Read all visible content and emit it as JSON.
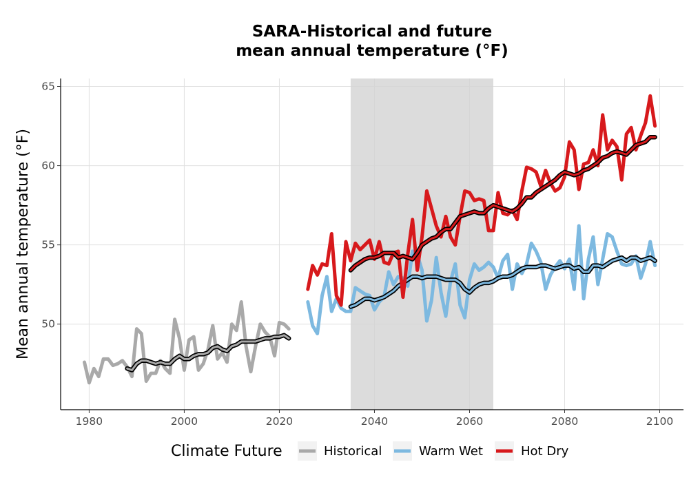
{
  "chart_data": {
    "type": "line",
    "title": "SARA-Historical and future\nmean annual temperature (°F)",
    "xlabel": "",
    "ylabel": "Mean annual temperature (°F)",
    "xlim": [
      1974,
      2105
    ],
    "ylim": [
      44.6,
      65.5
    ],
    "xticks": [
      1980,
      2000,
      2020,
      2040,
      2060,
      2080,
      2100
    ],
    "yticks": [
      50,
      55,
      60,
      65
    ],
    "grid": true,
    "shaded_period": [
      2035,
      2065
    ],
    "legend": {
      "title": "Climate Future",
      "position": "bottom",
      "entries": [
        "Historical",
        "Warm Wet",
        "Hot Dry"
      ]
    },
    "series": [
      {
        "name": "Historical",
        "color": "#A9A9A9",
        "x": [
          1979,
          1980,
          1981,
          1982,
          1983,
          1984,
          1985,
          1986,
          1987,
          1988,
          1989,
          1990,
          1991,
          1992,
          1993,
          1994,
          1995,
          1996,
          1997,
          1998,
          1999,
          2000,
          2001,
          2002,
          2003,
          2004,
          2005,
          2006,
          2007,
          2008,
          2009,
          2010,
          2011,
          2012,
          2013,
          2014,
          2015,
          2016,
          2017,
          2018,
          2019,
          2020,
          2021,
          2022
        ],
        "y": [
          47.6,
          46.3,
          47.2,
          46.7,
          47.8,
          47.8,
          47.4,
          47.5,
          47.7,
          47.3,
          46.7,
          49.7,
          49.4,
          46.4,
          46.9,
          46.9,
          47.7,
          47.2,
          46.9,
          50.3,
          49.1,
          47.1,
          49.0,
          49.2,
          47.1,
          47.5,
          48.4,
          49.9,
          47.8,
          48.2,
          47.6,
          50.0,
          49.6,
          51.4,
          48.6,
          47.0,
          48.6,
          50.0,
          49.5,
          49.2,
          48.0,
          50.1,
          50.0,
          49.7
        ]
      },
      {
        "name": "Historical trend",
        "color": "#A9A9A9",
        "x": [
          1988,
          1989,
          1990,
          1991,
          1992,
          1993,
          1994,
          1995,
          1996,
          1997,
          1998,
          1999,
          2000,
          2001,
          2002,
          2003,
          2004,
          2005,
          2006,
          2007,
          2008,
          2009,
          2010,
          2011,
          2012,
          2013,
          2014,
          2015,
          2016,
          2017,
          2018,
          2019,
          2020,
          2021,
          2022
        ],
        "y": [
          47.2,
          47.1,
          47.5,
          47.7,
          47.7,
          47.6,
          47.5,
          47.6,
          47.5,
          47.5,
          47.8,
          48.0,
          47.8,
          47.8,
          48.0,
          48.1,
          48.1,
          48.2,
          48.5,
          48.6,
          48.4,
          48.3,
          48.6,
          48.7,
          48.9,
          48.9,
          48.9,
          48.9,
          49.0,
          49.1,
          49.1,
          49.2,
          49.2,
          49.3,
          49.1
        ]
      },
      {
        "name": "Warm Wet",
        "color": "#7DB9E0",
        "x": [
          2026,
          2027,
          2028,
          2029,
          2030,
          2031,
          2032,
          2033,
          2034,
          2035,
          2036,
          2037,
          2038,
          2039,
          2040,
          2041,
          2042,
          2043,
          2044,
          2045,
          2046,
          2047,
          2048,
          2049,
          2050,
          2051,
          2052,
          2053,
          2054,
          2055,
          2056,
          2057,
          2058,
          2059,
          2060,
          2061,
          2062,
          2063,
          2064,
          2065,
          2066,
          2067,
          2068,
          2069,
          2070,
          2071,
          2072,
          2073,
          2074,
          2075,
          2076,
          2077,
          2078,
          2079,
          2080,
          2081,
          2082,
          2083,
          2084,
          2085,
          2086,
          2087,
          2088,
          2089,
          2090,
          2091,
          2092,
          2093,
          2094,
          2095,
          2096,
          2097,
          2098,
          2099
        ],
        "y": [
          51.4,
          49.9,
          49.4,
          51.8,
          53.0,
          50.8,
          51.6,
          51.0,
          50.8,
          50.8,
          52.3,
          52.1,
          51.9,
          51.8,
          50.9,
          51.4,
          51.7,
          53.3,
          52.5,
          53.0,
          52.9,
          52.4,
          54.6,
          54.4,
          53.4,
          50.2,
          51.5,
          54.2,
          52.0,
          50.5,
          52.7,
          53.8,
          51.2,
          50.4,
          52.8,
          53.8,
          53.4,
          53.6,
          53.9,
          53.6,
          52.9,
          54.0,
          54.4,
          52.2,
          53.8,
          53.2,
          53.8,
          55.1,
          54.6,
          53.9,
          52.2,
          53.1,
          53.6,
          54.0,
          53.5,
          54.1,
          52.2,
          56.2,
          51.6,
          54.1,
          55.5,
          52.5,
          54.1,
          55.7,
          55.5,
          54.6,
          53.8,
          53.7,
          53.8,
          54.3,
          52.9,
          53.8,
          55.2,
          53.7
        ]
      },
      {
        "name": "Warm Wet trend",
        "color": "#7DB9E0",
        "x": [
          2035,
          2036,
          2037,
          2038,
          2039,
          2040,
          2041,
          2042,
          2043,
          2044,
          2045,
          2046,
          2047,
          2048,
          2049,
          2050,
          2051,
          2052,
          2053,
          2054,
          2055,
          2056,
          2057,
          2058,
          2059,
          2060,
          2061,
          2062,
          2063,
          2064,
          2065,
          2066,
          2067,
          2068,
          2069,
          2070,
          2071,
          2072,
          2073,
          2074,
          2075,
          2076,
          2077,
          2078,
          2079,
          2080,
          2081,
          2082,
          2083,
          2084,
          2085,
          2086,
          2087,
          2088,
          2089,
          2090,
          2091,
          2092,
          2093,
          2094,
          2095,
          2096,
          2097,
          2098,
          2099
        ],
        "y": [
          51.1,
          51.2,
          51.4,
          51.6,
          51.6,
          51.5,
          51.6,
          51.7,
          51.9,
          52.1,
          52.4,
          52.6,
          52.8,
          53.0,
          53.0,
          52.9,
          53.0,
          53.0,
          53.0,
          52.9,
          52.8,
          52.8,
          52.8,
          52.6,
          52.2,
          52.0,
          52.3,
          52.5,
          52.6,
          52.6,
          52.7,
          52.9,
          53.0,
          53.0,
          53.1,
          53.3,
          53.5,
          53.6,
          53.6,
          53.6,
          53.7,
          53.7,
          53.6,
          53.5,
          53.6,
          53.7,
          53.7,
          53.5,
          53.6,
          53.3,
          53.3,
          53.7,
          53.7,
          53.6,
          53.8,
          54.0,
          54.1,
          54.2,
          54.0,
          54.2,
          54.2,
          54.0,
          54.1,
          54.2,
          54.0
        ]
      },
      {
        "name": "Hot Dry",
        "color": "#D7191C",
        "x": [
          2026,
          2027,
          2028,
          2029,
          2030,
          2031,
          2032,
          2033,
          2034,
          2035,
          2036,
          2037,
          2038,
          2039,
          2040,
          2041,
          2042,
          2043,
          2044,
          2045,
          2046,
          2047,
          2048,
          2049,
          2050,
          2051,
          2052,
          2053,
          2054,
          2055,
          2056,
          2057,
          2058,
          2059,
          2060,
          2061,
          2062,
          2063,
          2064,
          2065,
          2066,
          2067,
          2068,
          2069,
          2070,
          2071,
          2072,
          2073,
          2074,
          2075,
          2076,
          2077,
          2078,
          2079,
          2080,
          2081,
          2082,
          2083,
          2084,
          2085,
          2086,
          2087,
          2088,
          2089,
          2090,
          2091,
          2092,
          2093,
          2094,
          2095,
          2096,
          2097,
          2098,
          2099
        ],
        "y": [
          52.2,
          53.7,
          53.1,
          53.8,
          53.7,
          55.7,
          51.8,
          51.2,
          55.2,
          54.0,
          55.1,
          54.7,
          55.0,
          55.3,
          54.1,
          55.2,
          53.9,
          53.8,
          54.5,
          54.6,
          51.7,
          54.4,
          56.6,
          53.4,
          55.5,
          58.4,
          57.3,
          56.2,
          55.5,
          56.8,
          55.5,
          55.0,
          56.8,
          58.4,
          58.3,
          57.8,
          57.9,
          57.8,
          55.9,
          55.9,
          58.3,
          57.0,
          56.9,
          57.2,
          56.6,
          58.4,
          59.9,
          59.8,
          59.6,
          58.7,
          59.7,
          58.9,
          58.4,
          58.6,
          59.3,
          61.5,
          61.0,
          58.5,
          60.1,
          60.2,
          61.0,
          60.0,
          63.2,
          61.0,
          61.6,
          61.2,
          59.1,
          62.0,
          62.4,
          61.0,
          61.9,
          62.7,
          64.4,
          62.5
        ]
      },
      {
        "name": "Hot Dry trend",
        "color": "#D7191C",
        "x": [
          2035,
          2036,
          2037,
          2038,
          2039,
          2040,
          2041,
          2042,
          2043,
          2044,
          2045,
          2046,
          2047,
          2048,
          2049,
          2050,
          2051,
          2052,
          2053,
          2054,
          2055,
          2056,
          2057,
          2058,
          2059,
          2060,
          2061,
          2062,
          2063,
          2064,
          2065,
          2066,
          2067,
          2068,
          2069,
          2070,
          2071,
          2072,
          2073,
          2074,
          2075,
          2076,
          2077,
          2078,
          2079,
          2080,
          2081,
          2082,
          2083,
          2084,
          2085,
          2086,
          2087,
          2088,
          2089,
          2090,
          2091,
          2092,
          2093,
          2094,
          2095,
          2096,
          2097,
          2098,
          2099
        ],
        "y": [
          53.4,
          53.7,
          53.9,
          54.1,
          54.2,
          54.2,
          54.3,
          54.5,
          54.5,
          54.5,
          54.2,
          54.3,
          54.2,
          54.1,
          54.5,
          55.0,
          55.2,
          55.4,
          55.5,
          55.8,
          56.0,
          56.0,
          56.4,
          56.8,
          56.9,
          57.0,
          57.1,
          57.0,
          57.0,
          57.3,
          57.5,
          57.4,
          57.3,
          57.2,
          57.1,
          57.3,
          57.6,
          58.0,
          58.0,
          58.3,
          58.5,
          58.7,
          58.9,
          59.1,
          59.4,
          59.6,
          59.5,
          59.4,
          59.5,
          59.7,
          59.8,
          60.0,
          60.2,
          60.5,
          60.6,
          60.8,
          60.9,
          60.8,
          60.7,
          61.0,
          61.3,
          61.4,
          61.5,
          61.8,
          61.8
        ]
      }
    ]
  }
}
